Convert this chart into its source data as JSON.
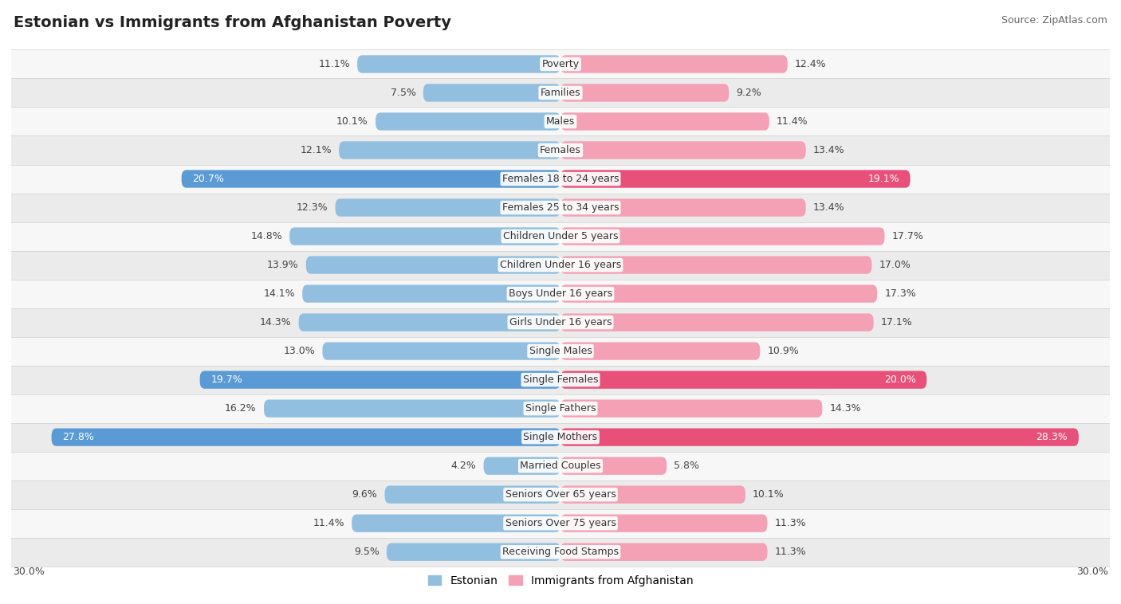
{
  "title": "Estonian vs Immigrants from Afghanistan Poverty",
  "source": "Source: ZipAtlas.com",
  "categories": [
    "Poverty",
    "Families",
    "Males",
    "Females",
    "Females 18 to 24 years",
    "Females 25 to 34 years",
    "Children Under 5 years",
    "Children Under 16 years",
    "Boys Under 16 years",
    "Girls Under 16 years",
    "Single Males",
    "Single Females",
    "Single Fathers",
    "Single Mothers",
    "Married Couples",
    "Seniors Over 65 years",
    "Seniors Over 75 years",
    "Receiving Food Stamps"
  ],
  "estonian": [
    11.1,
    7.5,
    10.1,
    12.1,
    20.7,
    12.3,
    14.8,
    13.9,
    14.1,
    14.3,
    13.0,
    19.7,
    16.2,
    27.8,
    4.2,
    9.6,
    11.4,
    9.5
  ],
  "afghanistan": [
    12.4,
    9.2,
    11.4,
    13.4,
    19.1,
    13.4,
    17.7,
    17.0,
    17.3,
    17.1,
    10.9,
    20.0,
    14.3,
    28.3,
    5.8,
    10.1,
    11.3,
    11.3
  ],
  "estonian_color": "#92bfdf",
  "afghanistan_color": "#f4a0b5",
  "highlight_estonian_color": "#5b9bd5",
  "highlight_afghanistan_color": "#e8507a",
  "row_bg_light": "#f7f7f7",
  "row_bg_dark": "#ebebeb",
  "row_line_color": "#d0d0d0",
  "max_value": 30.0,
  "bar_height": 0.62,
  "label_fontsize": 9.0,
  "title_fontsize": 14,
  "source_fontsize": 9,
  "legend_fontsize": 10,
  "highlight_threshold": 19.0
}
